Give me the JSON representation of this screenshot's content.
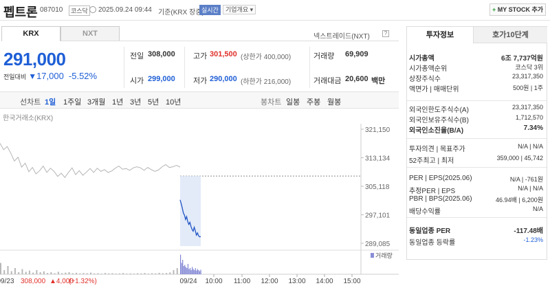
{
  "header": {
    "stock_name": "펩트론",
    "code": "087010",
    "market_badge": "코스닥",
    "datetime": "2025.09.24 09:44",
    "basis": "기준(KRX 장중)",
    "realtime_badge": "실시간",
    "company_btn": "기업개요",
    "mystock_btn": "MY STOCK 추가"
  },
  "market_tabs": {
    "krx": "KRX",
    "nxt": "NXT",
    "nextrade_label": "넥스트레이드(NXT)"
  },
  "price": {
    "current": "291,000",
    "change_label": "전일대비",
    "change_value": "17,000",
    "change_pct": "-5.52%"
  },
  "summary": {
    "prev_label": "전일",
    "prev_value": "308,000",
    "high_label": "고가",
    "high_value": "301,500",
    "high_limit": "(상한가 400,000)",
    "volume_label": "거래량",
    "volume_value": "69,909",
    "open_label": "시가",
    "open_value": "299,000",
    "low_label": "저가",
    "low_value": "290,000",
    "low_limit": "(하한가 216,000)",
    "amount_label": "거래대금",
    "amount_value": "20,600",
    "amount_unit": "백만"
  },
  "chart_controls": {
    "line_label": "선차트",
    "periods": [
      "1일",
      "1주일",
      "3개월",
      "1년",
      "3년",
      "5년",
      "10년"
    ],
    "active_period": "1일",
    "candle_label": "봉차트",
    "candles": [
      "일봉",
      "주봉",
      "월봉"
    ]
  },
  "chart_data": {
    "type": "line",
    "title": "한국거래소(KRX)",
    "y_ticks": [
      "321,150",
      "313,134",
      "305,118",
      "297,101",
      "289,085"
    ],
    "ylim": [
      289085,
      321150
    ],
    "prev_close": 308000,
    "x_ticks": [
      "09/23",
      "09/24",
      "10:00",
      "11:00",
      "12:00",
      "13:00",
      "14:00",
      "15:00"
    ],
    "volume_label": "거래량",
    "prev_day_series": [
      {
        "x": 0,
        "y": 317200
      },
      {
        "x": 2,
        "y": 315400
      },
      {
        "x": 4,
        "y": 316300
      },
      {
        "x": 6,
        "y": 314400
      },
      {
        "x": 8,
        "y": 312200
      },
      {
        "x": 10,
        "y": 313300
      },
      {
        "x": 12,
        "y": 310500
      },
      {
        "x": 14,
        "y": 311600
      },
      {
        "x": 16,
        "y": 309200
      },
      {
        "x": 18,
        "y": 310400
      },
      {
        "x": 20,
        "y": 308600
      },
      {
        "x": 22,
        "y": 309500
      },
      {
        "x": 24,
        "y": 310800
      },
      {
        "x": 26,
        "y": 309000
      },
      {
        "x": 28,
        "y": 310200
      },
      {
        "x": 30,
        "y": 309300
      },
      {
        "x": 32,
        "y": 307900
      },
      {
        "x": 34,
        "y": 308800
      },
      {
        "x": 36,
        "y": 307600
      },
      {
        "x": 38,
        "y": 309000
      },
      {
        "x": 40,
        "y": 310300
      },
      {
        "x": 42,
        "y": 308400
      },
      {
        "x": 44,
        "y": 309500
      },
      {
        "x": 46,
        "y": 308200
      },
      {
        "x": 48,
        "y": 309100
      },
      {
        "x": 50,
        "y": 310100
      },
      {
        "x": 52,
        "y": 309000
      },
      {
        "x": 54,
        "y": 310200
      },
      {
        "x": 56,
        "y": 309300
      },
      {
        "x": 58,
        "y": 309800
      },
      {
        "x": 60,
        "y": 309000
      },
      {
        "x": 62,
        "y": 309400
      },
      {
        "x": 64,
        "y": 310200
      },
      {
        "x": 66,
        "y": 310800
      },
      {
        "x": 68,
        "y": 309900
      },
      {
        "x": 70,
        "y": 310100
      },
      {
        "x": 72,
        "y": 309600
      },
      {
        "x": 74,
        "y": 310300
      },
      {
        "x": 76,
        "y": 310600
      },
      {
        "x": 78,
        "y": 310300
      },
      {
        "x": 80,
        "y": 309600
      },
      {
        "x": 82,
        "y": 310400
      },
      {
        "x": 84,
        "y": 309800
      },
      {
        "x": 86,
        "y": 309300
      },
      {
        "x": 88,
        "y": 309700
      },
      {
        "x": 90,
        "y": 310600
      },
      {
        "x": 92,
        "y": 311200
      },
      {
        "x": 94,
        "y": 310400
      },
      {
        "x": 96,
        "y": 310600
      },
      {
        "x": 98,
        "y": 311000
      },
      {
        "x": 100,
        "y": 310500
      }
    ],
    "today_series": [
      {
        "x": 0,
        "y": 301300
      },
      {
        "x": 1,
        "y": 300200
      },
      {
        "x": 2,
        "y": 299000
      },
      {
        "x": 3,
        "y": 297600
      },
      {
        "x": 4,
        "y": 297000
      },
      {
        "x": 5,
        "y": 295800
      },
      {
        "x": 6,
        "y": 296600
      },
      {
        "x": 7,
        "y": 295200
      },
      {
        "x": 8,
        "y": 294400
      },
      {
        "x": 9,
        "y": 295000
      },
      {
        "x": 10,
        "y": 293800
      },
      {
        "x": 11,
        "y": 293000
      },
      {
        "x": 12,
        "y": 292500
      },
      {
        "x": 13,
        "y": 293600
      },
      {
        "x": 14,
        "y": 292600
      },
      {
        "x": 15,
        "y": 291400
      },
      {
        "x": 16,
        "y": 292000
      },
      {
        "x": 17,
        "y": 291200
      },
      {
        "x": 18,
        "y": 290900
      },
      {
        "x": 19,
        "y": 291000
      }
    ],
    "prev_day_volume": [
      0.55,
      0.2,
      0.4,
      0.15,
      0.3,
      0.1,
      0.25,
      0.12,
      0.18,
      0.08,
      0.2,
      0.1,
      0.14,
      0.06,
      0.1,
      0.05,
      0.12,
      0.05,
      0.08,
      0.1,
      0.05,
      0.07,
      0.04,
      0.06,
      0.05,
      0.08,
      0.04,
      0.05,
      0.03,
      0.06,
      0.04,
      0.05,
      0.03,
      0.04,
      0.06,
      0.03,
      0.04,
      0.03,
      0.05,
      0.04,
      0.06,
      0.03,
      0.05,
      0.04,
      0.07,
      0.05,
      0.06,
      0.09,
      0.2,
      0.3
    ],
    "today_volume": [
      0.95,
      0.55,
      0.7,
      0.4,
      0.45,
      0.35,
      0.3,
      0.5,
      0.25,
      0.3,
      0.2,
      0.35,
      0.25,
      0.2,
      0.3,
      0.18,
      0.25,
      0.2,
      0.15,
      0.22
    ],
    "footer_date": "09/23",
    "footer_price": "308,000",
    "footer_change": "▲4,000",
    "footer_pct": "(+1.32%)"
  },
  "side": {
    "tab_invest": "투자정보",
    "tab_quote": "호가10단계",
    "rows1": [
      {
        "label": "시가총액",
        "value": "6조 7,737억원",
        "bold": true
      },
      {
        "label": "시가총액순위",
        "value": "코스닥 3위"
      },
      {
        "label": "상장주식수",
        "value": "23,317,350"
      },
      {
        "label": "액면가 | 매매단위",
        "value": "500원 | 1주"
      }
    ],
    "rows2": [
      {
        "label": "외국인한도주식수(A)",
        "value": "23,317,350"
      },
      {
        "label": "외국인보유주식수(B)",
        "value": "1,712,570"
      },
      {
        "label": "외국인소진율(B/A)",
        "value": "7.34%",
        "bold": true
      }
    ],
    "opinion_label": "투자의견 | 목표주가",
    "opinion_value": "N/A | N/A",
    "w52_label": "52주최고 | 최저",
    "w52_value": "359,000 | 45,742",
    "per_label": "PER | EPS(2025.06)",
    "per_value": "N/A | -761원",
    "est_per_label": "추정PER | EPS",
    "est_per_value": "N/A | N/A",
    "pbr_label": "PBR | BPS(2025.06)",
    "pbr_value": "46.94배 | 6,200원",
    "div_label": "배당수익률",
    "div_value": "N/A",
    "sector_per_label": "동일업종 PER",
    "sector_per_value": "-117.48배",
    "sector_rate_label": "동일업종 등락률",
    "sector_rate_value": "-1.23%"
  },
  "colors": {
    "up": "#e0312a",
    "down": "#1f5fd6",
    "accent": "#1f5fd6"
  }
}
